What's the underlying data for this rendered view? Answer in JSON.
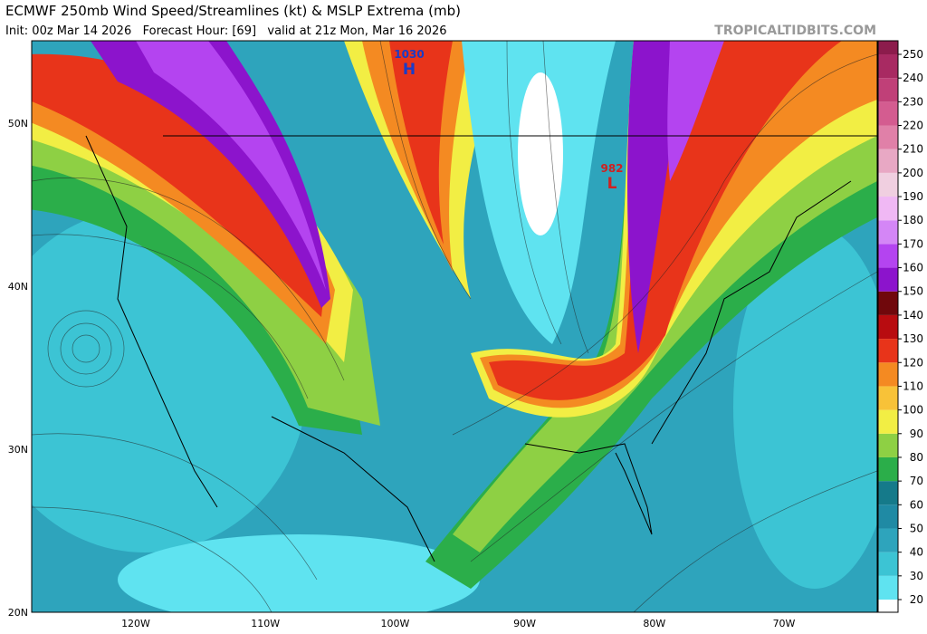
{
  "header": {
    "title": "ECMWF 250mb Wind Speed/Streamlines (kt) & MSLP Extrema (mb)",
    "subtitle": "Init: 00z Mar 14 2026   Forecast Hour: [69]   valid at 21z Mon, Mar 16 2026",
    "site": "TROPICALTIDBITS.COM"
  },
  "map": {
    "lat_labels": [
      "50N",
      "40N",
      "30N",
      "20N"
    ],
    "lon_labels": [
      "120W",
      "110W",
      "100W",
      "90W",
      "80W",
      "70W"
    ],
    "extrema": [
      {
        "pressure": "1030",
        "symbol": "H",
        "color": "#1a3cc8"
      },
      {
        "pressure": "982",
        "symbol": "L",
        "color": "#d02020"
      }
    ]
  },
  "colorbar": {
    "labels": [
      20,
      30,
      40,
      50,
      60,
      70,
      80,
      90,
      100,
      110,
      120,
      130,
      140,
      150,
      160,
      170,
      180,
      190,
      200,
      210,
      220,
      230,
      240,
      250
    ],
    "colors": [
      "#ffffff",
      "#5fe3f0",
      "#3cc4d4",
      "#2ea4bc",
      "#1f8aa4",
      "#157a8a",
      "#2bae4a",
      "#8ed044",
      "#f2ee44",
      "#f8c238",
      "#f48a22",
      "#e8341a",
      "#b80c10",
      "#70080c",
      "#8c14cc",
      "#b444f0",
      "#d486f6",
      "#f0b8f4",
      "#f0cfe0",
      "#e8a8c4",
      "#e080a8",
      "#d45c90",
      "#c04078",
      "#a82a62",
      "#8c1c4c"
    ]
  }
}
